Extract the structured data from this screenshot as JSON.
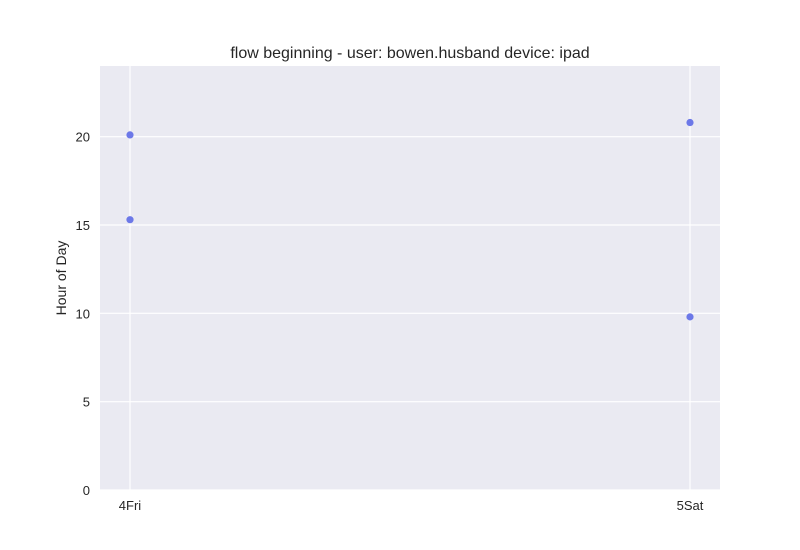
{
  "chart_data": {
    "type": "scatter",
    "title": "flow beginning - user: bowen.husband device: ipad",
    "xlabel": "",
    "ylabel": "Hour of Day",
    "x_categories": [
      "4Fri",
      "5Sat"
    ],
    "ylim": [
      0,
      24
    ],
    "y_ticks": [
      0,
      5,
      10,
      15,
      20
    ],
    "grid": true,
    "points": [
      {
        "x": "4Fri",
        "y": 20.1
      },
      {
        "x": "4Fri",
        "y": 15.3
      },
      {
        "x": "5Sat",
        "y": 20.8
      },
      {
        "x": "5Sat",
        "y": 9.8
      }
    ],
    "colors": {
      "plot_background": "#eaeaf2",
      "grid": "#ffffff",
      "marker": "#6c78e8"
    }
  }
}
